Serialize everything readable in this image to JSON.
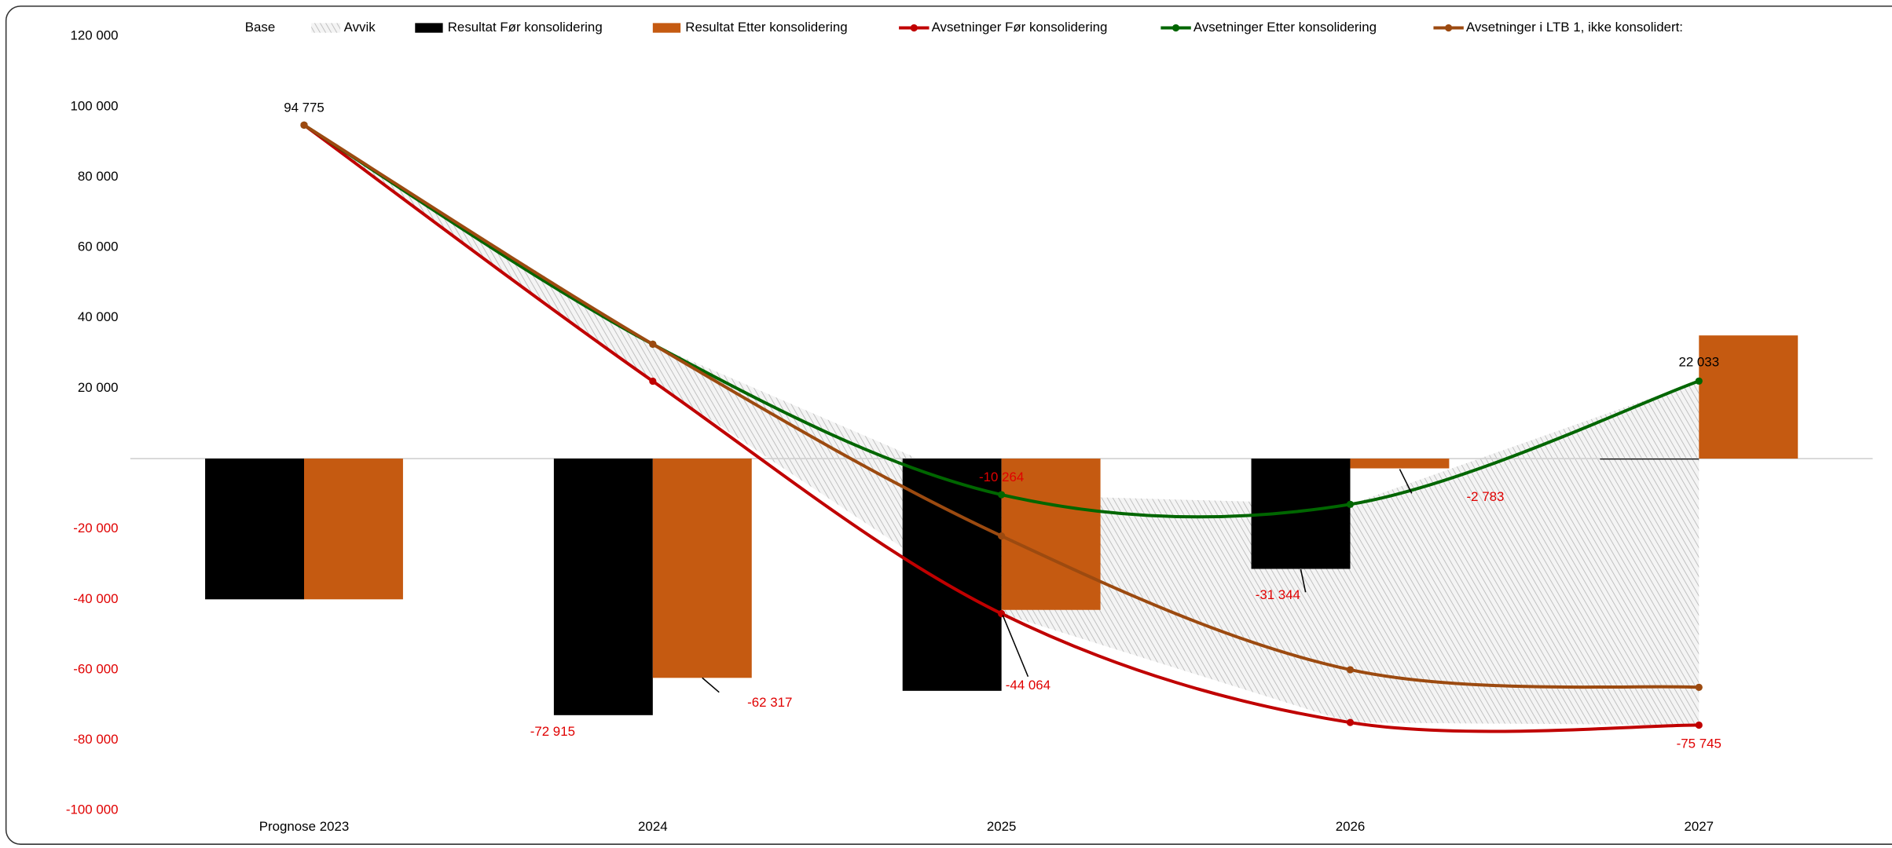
{
  "chart_data": {
    "type": "combo",
    "categories": [
      "Prognose 2023",
      "2024",
      "2025",
      "2026",
      "2027"
    ],
    "ylim": [
      -100000,
      120000
    ],
    "yticks": [
      {
        "value": -100000,
        "label": "-100 000"
      },
      {
        "value": -80000,
        "label": "-80 000"
      },
      {
        "value": -60000,
        "label": "-60 000"
      },
      {
        "value": -40000,
        "label": "-40 000"
      },
      {
        "value": -20000,
        "label": "-20 000"
      },
      {
        "value": 20000,
        "label": "20 000"
      },
      {
        "value": 40000,
        "label": "40 000"
      },
      {
        "value": 60000,
        "label": "60 000"
      },
      {
        "value": 80000,
        "label": "80 000"
      },
      {
        "value": 100000,
        "label": "100 000"
      },
      {
        "value": 120000,
        "label": "120 000"
      }
    ],
    "negative_color": "#e00000",
    "series": [
      {
        "name": "Base",
        "type": "area",
        "color": "none",
        "values": [
          94775,
          22000,
          -44064,
          -75000,
          -75745
        ]
      },
      {
        "name": "Avvik",
        "type": "area",
        "color": "#c8c8c8",
        "values": [
          0,
          10500,
          33800,
          62000,
          97800
        ]
      },
      {
        "name": "Resultat Før konsolidering",
        "type": "bar",
        "color": "#000000",
        "values": [
          -40000,
          -72915,
          -66000,
          -31344,
          0
        ],
        "value_labels": [
          null,
          "-72 915",
          null,
          "-31 344",
          null
        ]
      },
      {
        "name": "Resultat Etter konsolidering",
        "type": "bar",
        "color": "#c55a11",
        "values": [
          -40000,
          -62317,
          -43000,
          -2783,
          35000
        ],
        "value_labels": [
          null,
          "-62 317",
          null,
          "-2 783",
          null
        ]
      },
      {
        "name": "Avsetninger Før konsolidering",
        "type": "line",
        "color": "#c00000",
        "values": [
          94775,
          22000,
          -44064,
          -75000,
          -75745
        ],
        "value_labels": [
          null,
          null,
          "-44 064",
          null,
          "-75 745"
        ]
      },
      {
        "name": "Avsetninger Etter konsolidering",
        "type": "line",
        "color": "#006600",
        "values": [
          94775,
          32500,
          -10264,
          -13000,
          22033
        ],
        "value_labels": [
          null,
          null,
          "-10 264",
          null,
          "22 033"
        ]
      },
      {
        "name": "Avsetninger i LTB 1, ikke konsolidert:",
        "type": "line",
        "color": "#9c4a10",
        "values": [
          94775,
          32500,
          -22000,
          -60000,
          -65000
        ],
        "value_labels": [
          "94 775",
          null,
          null,
          null,
          null
        ]
      }
    ]
  }
}
